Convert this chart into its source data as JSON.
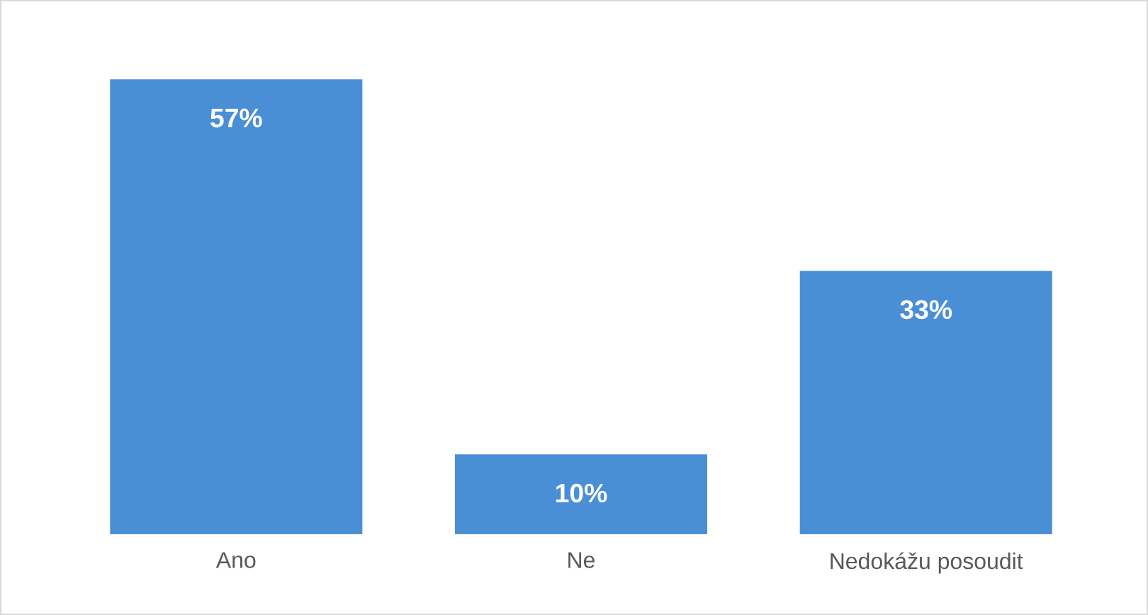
{
  "chart_data": {
    "type": "bar",
    "categories": [
      "Ano",
      "Ne",
      "Nedokážu posoudit"
    ],
    "values": [
      57,
      10,
      33
    ],
    "value_labels": [
      "57%",
      "10%",
      "33%"
    ],
    "color": "#4a8fd6"
  }
}
